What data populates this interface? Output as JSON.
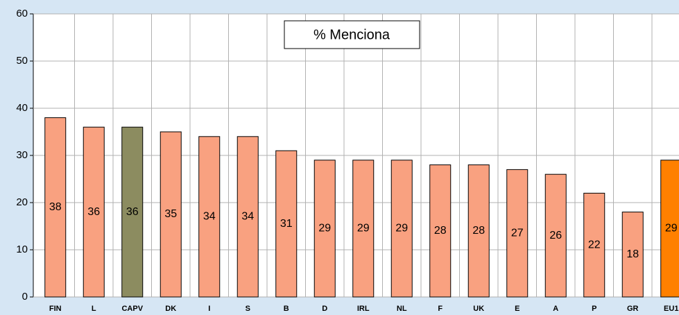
{
  "chart_data": {
    "type": "bar",
    "legend": "% Menciona",
    "categories": [
      "FIN",
      "L",
      "CAPV",
      "DK",
      "I",
      "S",
      "B",
      "D",
      "IRL",
      "NL",
      "F",
      "UK",
      "E",
      "A",
      "P",
      "GR",
      "EU1"
    ],
    "values": [
      38,
      36,
      36,
      35,
      34,
      34,
      31,
      29,
      29,
      29,
      28,
      28,
      27,
      26,
      22,
      18,
      29
    ],
    "colors": [
      "#f9a180",
      "#f9a180",
      "#8c8c60",
      "#f9a180",
      "#f9a180",
      "#f9a180",
      "#f9a180",
      "#f9a180",
      "#f9a180",
      "#f9a180",
      "#f9a180",
      "#f9a180",
      "#f9a180",
      "#f9a180",
      "#f9a180",
      "#f9a180",
      "#ff8000"
    ],
    "ylim": [
      0,
      60
    ],
    "yticks": [
      0,
      10,
      20,
      30,
      40,
      50,
      60
    ],
    "grid": true
  }
}
